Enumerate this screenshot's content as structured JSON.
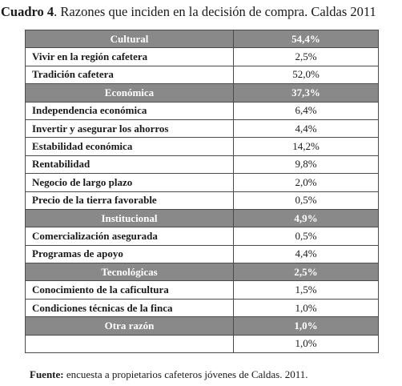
{
  "caption": {
    "label": "Cuadro 4",
    "text": ". Razones que inciden en la decisión de compra. Caldas 2011"
  },
  "groups": [
    {
      "name": "Cultural",
      "value": "54,4%",
      "rows": [
        {
          "label": "Vivir en la región cafetera",
          "value": "2,5%"
        },
        {
          "label": "Tradición cafetera",
          "value": "52,0%"
        }
      ]
    },
    {
      "name": "Económica",
      "value": "37,3%",
      "rows": [
        {
          "label": "Independencia económica",
          "value": "6,4%"
        },
        {
          "label": "Invertir y asegurar los ahorros",
          "value": "4,4%"
        },
        {
          "label": "Estabilidad económica",
          "value": "14,2%"
        },
        {
          "label": "Rentabilidad",
          "value": "9,8%"
        },
        {
          "label": "Negocio de largo plazo",
          "value": "2,0%"
        },
        {
          "label": "Precio de la tierra favorable",
          "value": "0,5%"
        }
      ]
    },
    {
      "name": "Institucional",
      "value": "4,9%",
      "rows": [
        {
          "label": "Comercialización asegurada",
          "value": "0,5%"
        },
        {
          "label": "Programas de apoyo",
          "value": "4,4%"
        }
      ]
    },
    {
      "name": "Tecnológicas",
      "value": "2,5%",
      "rows": [
        {
          "label": "Conocimiento de la caficultura",
          "value": "1,5%"
        },
        {
          "label": "Condiciones técnicas de la finca",
          "value": "1,0%"
        }
      ]
    },
    {
      "name": "Otra razón",
      "value": "1,0%",
      "rows": [
        {
          "label": "",
          "value": "1,0%"
        }
      ]
    }
  ],
  "source": {
    "label": "Fuente:",
    "text": " encuesta a propietarios cafeteros jóvenes de Caldas. 2011."
  }
}
